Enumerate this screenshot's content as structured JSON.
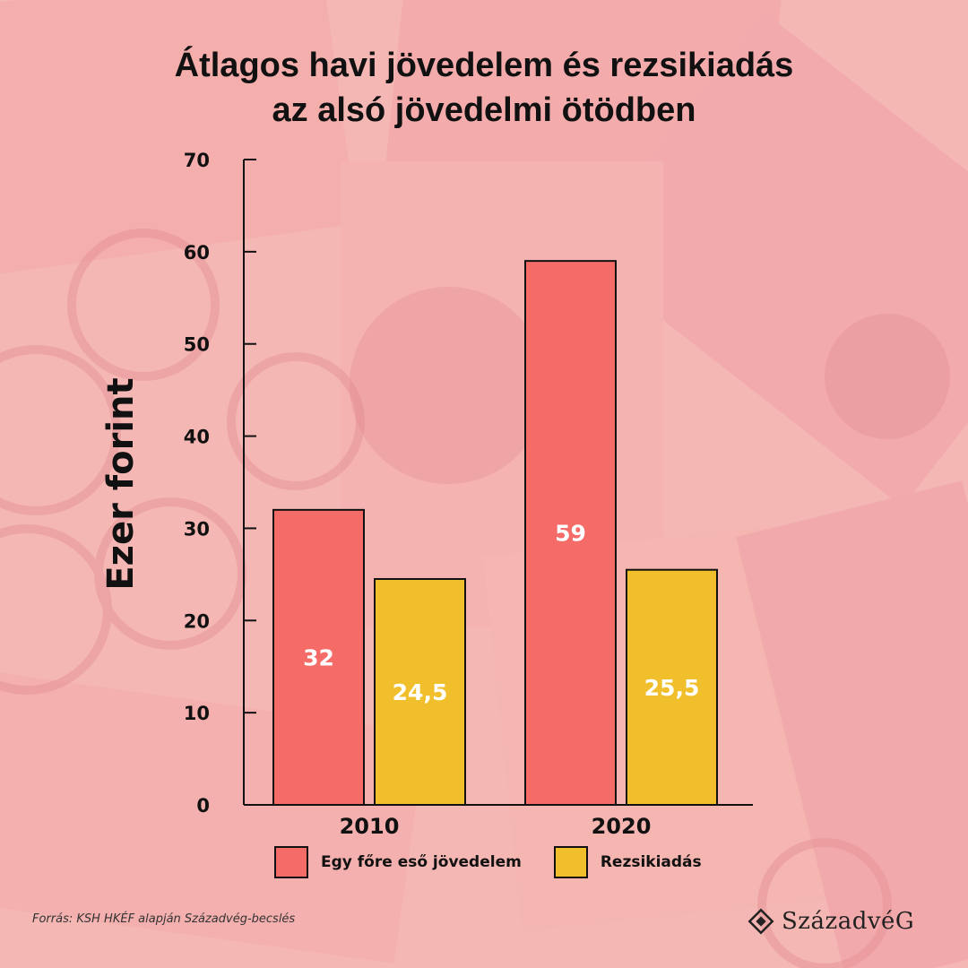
{
  "title": {
    "line1": "Átlagos havi jövedelem és rezsikiadás",
    "line2": "az alsó jövedelmi ötödben"
  },
  "colors": {
    "income": "#f46b67",
    "utility": "#f1be2c",
    "background": "#f5b6b3"
  },
  "chart_data": {
    "type": "bar",
    "title": "Átlagos havi jövedelem és rezsikiadás az alsó jövedelmi ötödben",
    "categories": [
      "2010",
      "2020"
    ],
    "series": [
      {
        "name": "Egy főre eső jövedelem",
        "values": [
          32,
          59
        ],
        "labels": [
          "32",
          "59"
        ],
        "color": "#f46b67"
      },
      {
        "name": "Rezsikiadás",
        "values": [
          24.5,
          25.5
        ],
        "labels": [
          "24,5",
          "25,5"
        ],
        "color": "#f1be2c"
      }
    ],
    "ylabel": "Ezer forint",
    "xlabel": "",
    "ylim": [
      0,
      70
    ],
    "yticks": [
      0,
      10,
      20,
      30,
      40,
      50,
      60,
      70
    ],
    "legend_position": "bottom"
  },
  "legend": {
    "income_label": "Egy főre eső jövedelem",
    "utility_label": "Rezsikiadás"
  },
  "source": "Forrás: KSH HKÉF alapján Századvég-becslés",
  "logo": {
    "text": "SzázadvéG",
    "icon": "diamond-emblem-icon"
  }
}
